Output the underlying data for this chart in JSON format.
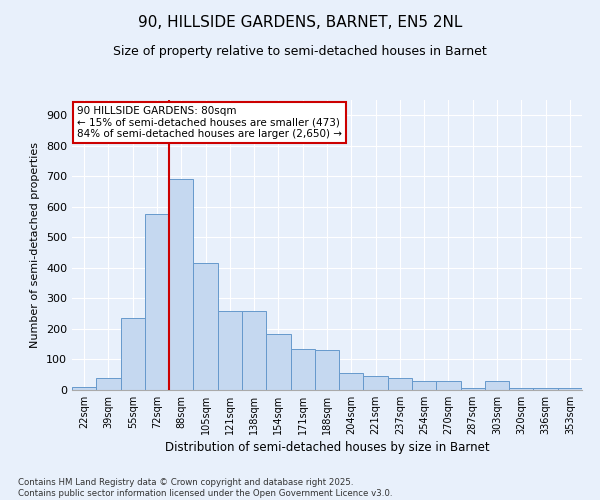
{
  "title1": "90, HILLSIDE GARDENS, BARNET, EN5 2NL",
  "title2": "Size of property relative to semi-detached houses in Barnet",
  "xlabel": "Distribution of semi-detached houses by size in Barnet",
  "ylabel": "Number of semi-detached properties",
  "categories": [
    "22sqm",
    "39sqm",
    "55sqm",
    "72sqm",
    "88sqm",
    "105sqm",
    "121sqm",
    "138sqm",
    "154sqm",
    "171sqm",
    "188sqm",
    "204sqm",
    "221sqm",
    "237sqm",
    "254sqm",
    "270sqm",
    "287sqm",
    "303sqm",
    "320sqm",
    "336sqm",
    "353sqm"
  ],
  "values": [
    10,
    40,
    235,
    575,
    690,
    415,
    260,
    260,
    185,
    135,
    130,
    55,
    45,
    40,
    30,
    30,
    5,
    30,
    5,
    5,
    5
  ],
  "bar_color": "#c5d8f0",
  "bar_edge_color": "#6699cc",
  "vline_color": "#cc0000",
  "vline_pos": 3.5,
  "annotation_text": "90 HILLSIDE GARDENS: 80sqm\n← 15% of semi-detached houses are smaller (473)\n84% of semi-detached houses are larger (2,650) →",
  "annotation_box_edge": "#cc0000",
  "ylim": [
    0,
    950
  ],
  "yticks": [
    0,
    100,
    200,
    300,
    400,
    500,
    600,
    700,
    800,
    900
  ],
  "footer": "Contains HM Land Registry data © Crown copyright and database right 2025.\nContains public sector information licensed under the Open Government Licence v3.0.",
  "bg_color": "#e8f0fb",
  "plot_bg_color": "#e8f0fb",
  "title1_fontsize": 11,
  "title2_fontsize": 9,
  "grid_color": "#ffffff"
}
